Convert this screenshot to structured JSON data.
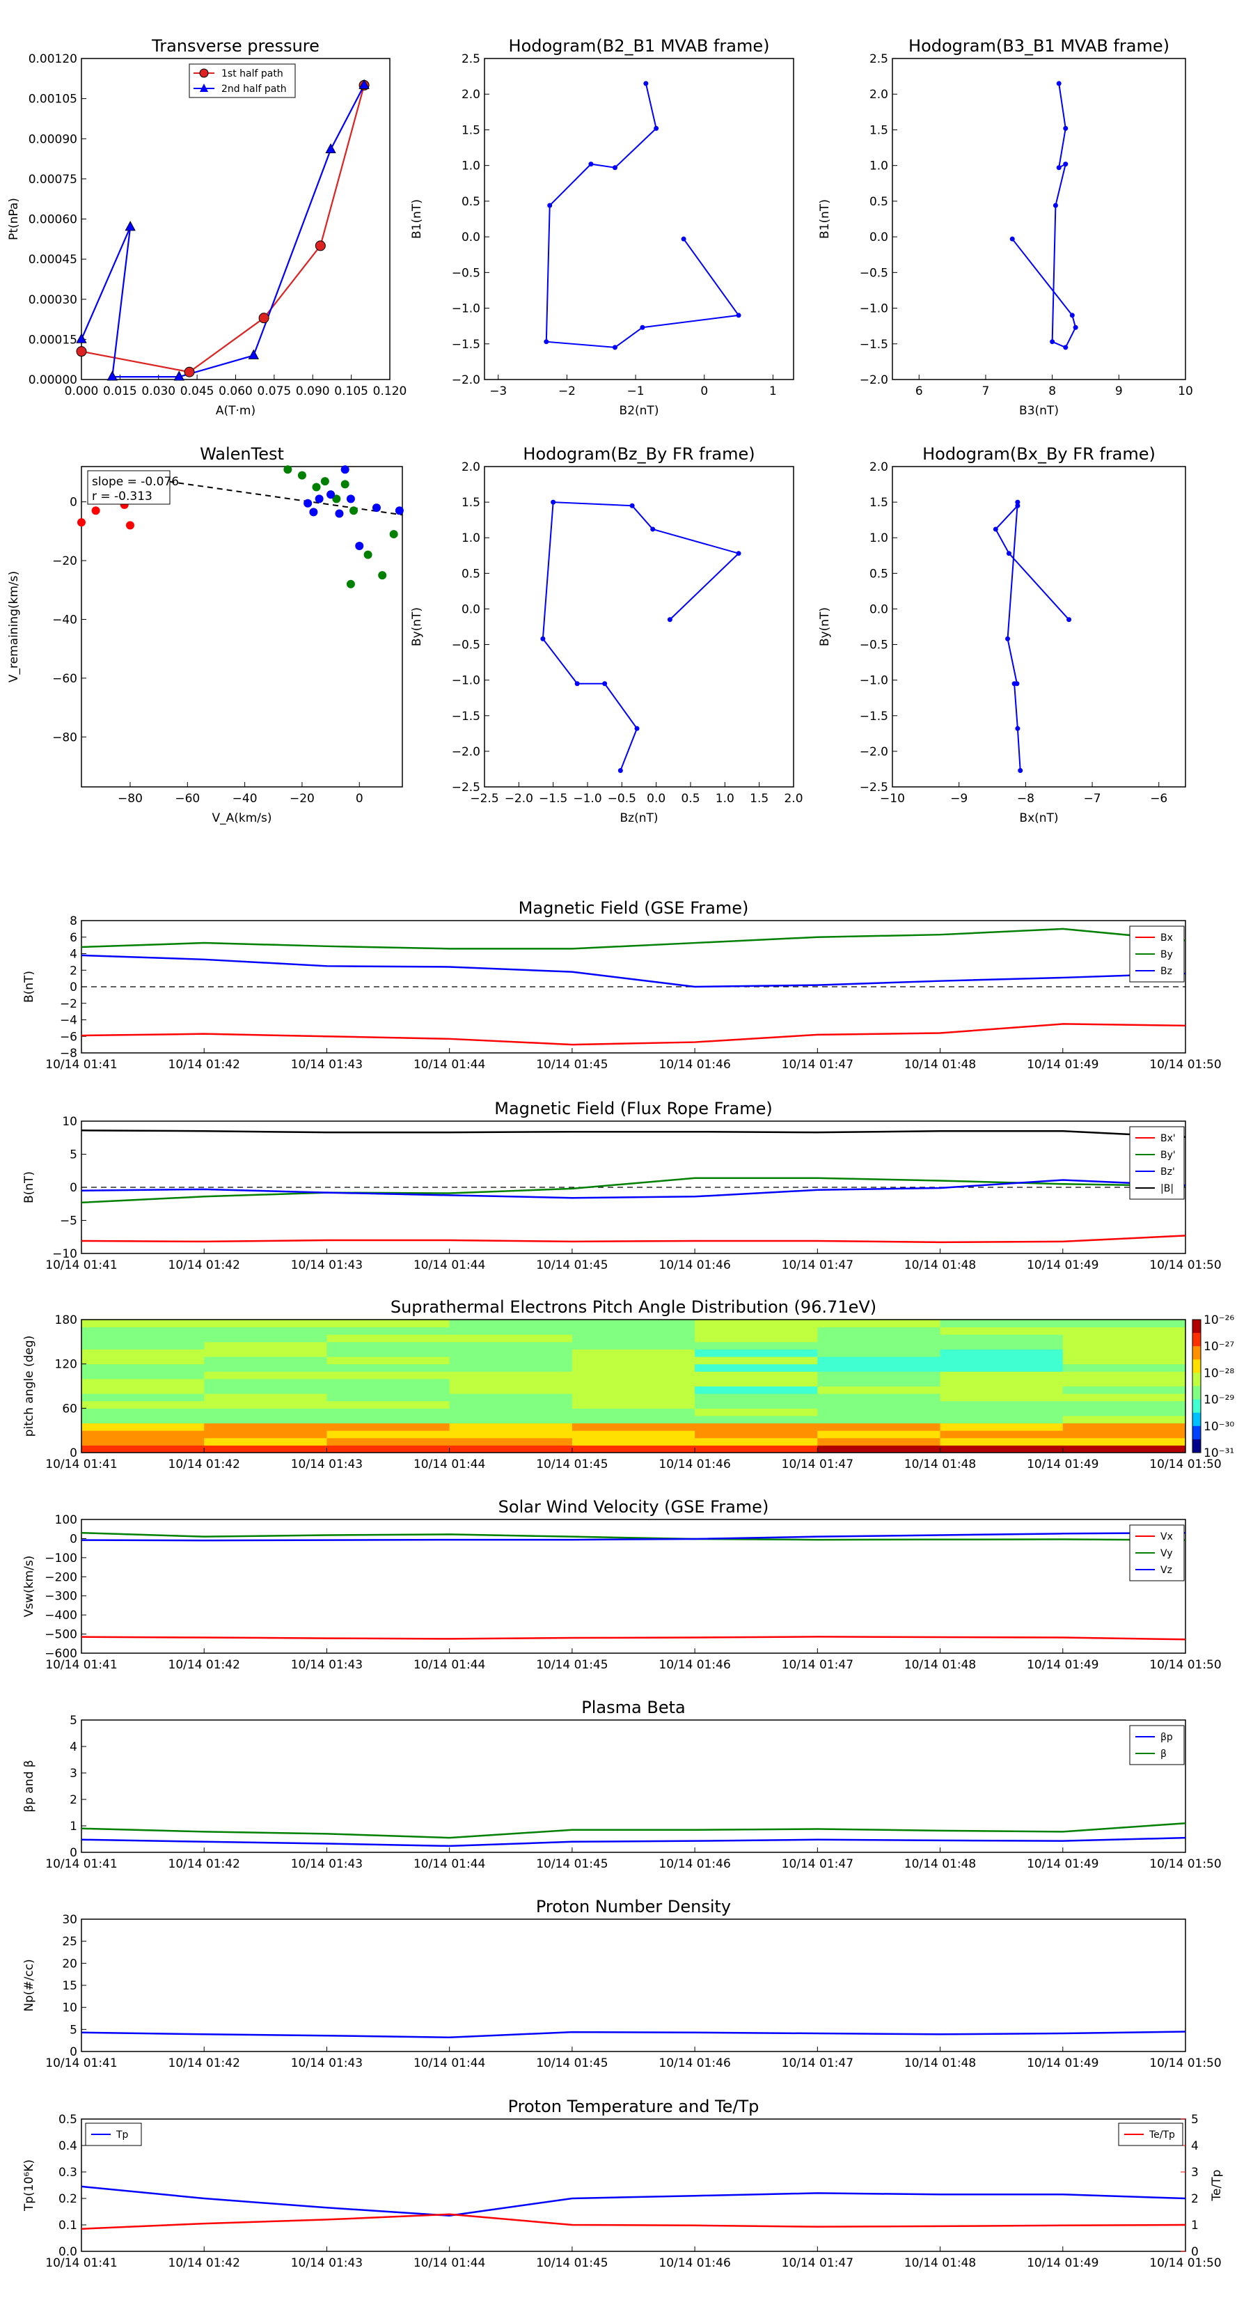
{
  "times": [
    "10/14 01:41",
    "10/14 01:42",
    "10/14 01:43",
    "10/14 01:44",
    "10/14 01:45",
    "10/14 01:46",
    "10/14 01:47",
    "10/14 01:48",
    "10/14 01:49",
    "10/14 01:50"
  ],
  "colors": {
    "red": "#ff0000",
    "green": "#008000",
    "blue": "#0000ff",
    "black": "#000000",
    "path1": "#dd2222",
    "path2": "#0000ff"
  },
  "chart_data": [
    {
      "id": "transverse-pressure",
      "type": "line",
      "title": "Transverse pressure",
      "xlabel": "A(T·m)",
      "ylabel": "Pt(nPa)",
      "xlim": [
        0,
        0.12
      ],
      "ylim": [
        0,
        0.0012
      ],
      "xticks": [
        "0.000",
        "0.015",
        "0.030",
        "0.045",
        "0.060",
        "0.075",
        "0.090",
        "0.105",
        "0.120"
      ],
      "yticks": [
        "0.00000",
        "0.00015",
        "0.00030",
        "0.00045",
        "0.00060",
        "0.00075",
        "0.00090",
        "0.00105",
        "0.00120"
      ],
      "legend": [
        "1st half path",
        "2nd half path"
      ],
      "series": [
        {
          "name": "1st half path",
          "marker": "circle",
          "x": [
            0.0,
            0.042,
            0.071,
            0.093,
            0.11
          ],
          "y": [
            0.000105,
            2.8e-05,
            0.00023,
            0.0005,
            0.0011
          ]
        },
        {
          "name": "2nd half path",
          "marker": "triangle",
          "x": [
            0.11,
            0.097,
            0.067,
            0.038,
            0.012,
            0.019,
            0.0
          ],
          "y": [
            0.0011,
            0.00086,
            9e-05,
            1e-05,
            1e-05,
            0.00057,
            0.00015
          ]
        }
      ]
    },
    {
      "id": "hodo-b2b1",
      "type": "line",
      "title": "Hodogram(B2_B1 MVAB frame)",
      "xlabel": "B2(nT)",
      "ylabel": "B1(nT)",
      "xlim": [
        -3.2,
        1.3
      ],
      "ylim": [
        -2.0,
        2.5
      ],
      "xticks": [
        "−3",
        "−2",
        "−1",
        "0",
        "1"
      ],
      "yticks": [
        "−2.0",
        "−1.5",
        "−1.0",
        "−0.5",
        "0.0",
        "0.5",
        "1.0",
        "1.5",
        "2.0",
        "2.5"
      ],
      "x": [
        -0.3,
        0.5,
        -0.9,
        -1.3,
        -2.3,
        -2.25,
        -1.65,
        -1.3,
        -0.7,
        -0.85
      ],
      "y": [
        -0.03,
        -1.1,
        -1.27,
        -1.55,
        -1.47,
        0.44,
        1.02,
        0.97,
        1.52,
        2.15
      ]
    },
    {
      "id": "hodo-b3b1",
      "type": "line",
      "title": "Hodogram(B3_B1 MVAB frame)",
      "xlabel": "B3(nT)",
      "ylabel": "B1(nT)",
      "xlim": [
        5.6,
        10.0
      ],
      "ylim": [
        -2.0,
        2.5
      ],
      "xticks": [
        "6",
        "7",
        "8",
        "9",
        "10"
      ],
      "yticks": [
        "−2.0",
        "−1.5",
        "−1.0",
        "−0.5",
        "0.0",
        "0.5",
        "1.0",
        "1.5",
        "2.0",
        "2.5"
      ],
      "x": [
        7.4,
        8.3,
        8.35,
        8.2,
        8.0,
        8.05,
        8.2,
        8.1,
        8.2,
        8.1
      ],
      "y": [
        -0.03,
        -1.1,
        -1.27,
        -1.55,
        -1.47,
        0.44,
        1.02,
        0.97,
        1.52,
        2.15
      ]
    },
    {
      "id": "walen-test",
      "type": "scatter",
      "title": "WalenTest",
      "xlabel": "V_A(km/s)",
      "ylabel": "V_remaining(km/s)",
      "xlim": [
        -97,
        15
      ],
      "ylim": [
        -97,
        12
      ],
      "xticks": [
        "−80",
        "−60",
        "−40",
        "−20",
        "0"
      ],
      "yticks": [
        "−80",
        "−60",
        "−40",
        "−20",
        "0"
      ],
      "annotation": [
        "slope = -0.076",
        "r = -0.313"
      ],
      "fit": {
        "slope": -0.076,
        "intercept": -3.3
      },
      "series": [
        {
          "color": "red",
          "x": [
            -97,
            -92,
            -88,
            -85,
            -82,
            -80
          ],
          "y": [
            -7,
            -3,
            0.5,
            3,
            -1,
            -8
          ]
        },
        {
          "color": "green",
          "x": [
            -25,
            -20,
            -15,
            -12,
            -8,
            -5,
            -3,
            3,
            8,
            12,
            -2
          ],
          "y": [
            11,
            9,
            5,
            7,
            1,
            6,
            -28,
            -18,
            -25,
            -11,
            -3
          ]
        },
        {
          "color": "blue",
          "x": [
            -18,
            -16,
            -14,
            -10,
            -7,
            -5,
            -3,
            0,
            6,
            14
          ],
          "y": [
            -0.5,
            -3.5,
            1,
            2.5,
            -4,
            11,
            1,
            -15,
            -2,
            -3
          ]
        }
      ]
    },
    {
      "id": "hodo-bzby",
      "type": "line",
      "title": "Hodogram(Bz_By FR frame)",
      "xlabel": "Bz(nT)",
      "ylabel": "By(nT)",
      "xlim": [
        -2.5,
        2.0
      ],
      "ylim": [
        -2.5,
        2.0
      ],
      "xticks": [
        "−2.5",
        "−2.0",
        "−1.5",
        "−1.0",
        "−0.5",
        "0.0",
        "0.5",
        "1.0",
        "1.5",
        "2.0"
      ],
      "yticks": [
        "−2.5",
        "−2.0",
        "−1.5",
        "−1.0",
        "−0.5",
        "0.0",
        "0.5",
        "1.0",
        "1.5",
        "2.0"
      ],
      "x": [
        0.2,
        1.2,
        -0.05,
        -0.35,
        -1.5,
        -1.65,
        -1.15,
        -0.75,
        -0.28,
        -0.52
      ],
      "y": [
        -0.15,
        0.78,
        1.12,
        1.45,
        1.5,
        -0.42,
        -1.05,
        -1.05,
        -1.68,
        -2.27
      ]
    },
    {
      "id": "hodo-bxby",
      "type": "line",
      "title": "Hodogram(Bx_By FR frame)",
      "xlabel": "Bx(nT)",
      "ylabel": "By(nT)",
      "xlim": [
        -10.0,
        -5.6
      ],
      "ylim": [
        -2.5,
        2.0
      ],
      "xticks": [
        "−10",
        "−9",
        "−8",
        "−7",
        "−6"
      ],
      "yticks": [
        "−2.5",
        "−2.0",
        "−1.5",
        "−1.0",
        "−0.5",
        "0.0",
        "0.5",
        "1.0",
        "1.5",
        "2.0"
      ],
      "x": [
        -7.35,
        -8.25,
        -8.45,
        -8.12,
        -8.12,
        -8.27,
        -8.13,
        -8.17,
        -8.12,
        -8.08
      ],
      "y": [
        -0.15,
        0.78,
        1.12,
        1.45,
        1.5,
        -0.42,
        -1.05,
        -1.05,
        -1.68,
        -2.27
      ]
    },
    {
      "id": "b-gse",
      "type": "line",
      "title": "Magnetic Field (GSE Frame)",
      "ylabel": "B(nT)",
      "ylim": [
        -8,
        8
      ],
      "yticks": [
        "−8",
        "−6",
        "−4",
        "−2",
        "0",
        "2",
        "4",
        "6",
        "8"
      ],
      "zero_line": true,
      "series": [
        {
          "name": "Bx",
          "color": "red",
          "y": [
            -5.9,
            -5.7,
            -6.0,
            -6.3,
            -7.0,
            -6.7,
            -5.8,
            -5.6,
            -4.5,
            -4.7
          ]
        },
        {
          "name": "By",
          "color": "green",
          "y": [
            4.8,
            5.3,
            4.9,
            4.6,
            4.6,
            5.3,
            6.0,
            6.3,
            7.0,
            5.6
          ]
        },
        {
          "name": "Bz",
          "color": "blue",
          "y": [
            3.8,
            3.3,
            2.5,
            2.4,
            1.8,
            0.0,
            0.2,
            0.7,
            1.1,
            1.6
          ]
        }
      ]
    },
    {
      "id": "b-fr",
      "type": "line",
      "title": "Magnetic Field (Flux Rope Frame)",
      "ylabel": "B(nT)",
      "ylim": [
        -10,
        10
      ],
      "yticks": [
        "−10",
        "−5",
        "0",
        "5",
        "10"
      ],
      "zero_line": true,
      "series": [
        {
          "name": "Bx'",
          "color": "red",
          "y": [
            -8.1,
            -8.2,
            -8.0,
            -8.0,
            -8.2,
            -8.1,
            -8.1,
            -8.3,
            -8.2,
            -7.3
          ]
        },
        {
          "name": "By'",
          "color": "green",
          "y": [
            -2.3,
            -1.4,
            -0.8,
            -0.9,
            -0.2,
            1.4,
            1.4,
            1.0,
            0.5,
            0.2
          ]
        },
        {
          "name": "Bz'",
          "color": "blue",
          "y": [
            -0.5,
            -0.3,
            -0.8,
            -1.2,
            -1.6,
            -1.4,
            -0.4,
            -0.1,
            1.1,
            0.3
          ]
        },
        {
          "name": "|B|",
          "color": "black",
          "y": [
            8.6,
            8.5,
            8.3,
            8.3,
            8.4,
            8.4,
            8.3,
            8.5,
            8.5,
            7.6
          ]
        }
      ]
    },
    {
      "id": "pad",
      "type": "heatmap",
      "title": "Suprathermal Electrons Pitch Angle Distribution (96.71eV)",
      "ylabel": "pitch angle (deg)",
      "ylim": [
        0,
        180
      ],
      "yticks": [
        "0",
        "60",
        "120",
        "180"
      ],
      "colorbar_ticks": [
        "10⁻²⁶",
        "10⁻²⁷",
        "10⁻²⁸",
        "10⁻²⁹",
        "10⁻³⁰",
        "10⁻³¹"
      ]
    },
    {
      "id": "vsw",
      "type": "line",
      "title": "Solar Wind Velocity (GSE Frame)",
      "ylabel": "Vsw(km/s)",
      "ylim": [
        -600,
        100
      ],
      "yticks": [
        "−600",
        "−500",
        "−400",
        "−300",
        "−200",
        "−100",
        "0",
        "100"
      ],
      "series": [
        {
          "name": "Vx",
          "color": "red",
          "y": [
            -515,
            -518,
            -522,
            -525,
            -520,
            -518,
            -514,
            -516,
            -518,
            -528
          ]
        },
        {
          "name": "Vy",
          "color": "green",
          "y": [
            30,
            10,
            18,
            22,
            10,
            -2,
            -6,
            -5,
            -4,
            -8
          ]
        },
        {
          "name": "Vz",
          "color": "blue",
          "y": [
            -8,
            -10,
            -8,
            -6,
            -6,
            -2,
            10,
            18,
            26,
            30
          ]
        }
      ]
    },
    {
      "id": "beta",
      "type": "line",
      "title": "Plasma Beta",
      "ylabel": "βp and β",
      "ylim": [
        0,
        5
      ],
      "yticks": [
        "0",
        "1",
        "2",
        "3",
        "4",
        "5"
      ],
      "series": [
        {
          "name": "βp",
          "color": "blue",
          "y": [
            0.48,
            0.4,
            0.33,
            0.24,
            0.4,
            0.43,
            0.48,
            0.45,
            0.43,
            0.55
          ]
        },
        {
          "name": "β",
          "color": "green",
          "y": [
            0.9,
            0.78,
            0.7,
            0.55,
            0.85,
            0.85,
            0.88,
            0.82,
            0.78,
            1.1
          ]
        }
      ]
    },
    {
      "id": "np",
      "type": "line",
      "title": "Proton Number Density",
      "ylabel": "Np(#/cc)",
      "ylim": [
        0,
        30
      ],
      "yticks": [
        "0",
        "5",
        "10",
        "15",
        "20",
        "25",
        "30"
      ],
      "series": [
        {
          "name": "Np",
          "color": "blue",
          "y": [
            4.3,
            3.9,
            3.6,
            3.2,
            4.4,
            4.3,
            4.1,
            3.9,
            4.1,
            4.5
          ]
        }
      ]
    },
    {
      "id": "tp",
      "type": "line",
      "title": "Proton Temperature and Te/Tp",
      "ylabel": "Tp(10⁶K)",
      "ylabel2": "Te/Tp",
      "ylim": [
        0,
        0.5
      ],
      "yticks": [
        "0.0",
        "0.1",
        "0.2",
        "0.3",
        "0.4",
        "0.5"
      ],
      "ylim2": [
        0,
        5
      ],
      "yticks2": [
        "0",
        "1",
        "2",
        "3",
        "4",
        "5"
      ],
      "series": [
        {
          "name": "Tp",
          "color": "blue",
          "axis": 1,
          "y": [
            0.245,
            0.2,
            0.165,
            0.135,
            0.2,
            0.21,
            0.22,
            0.215,
            0.215,
            0.2
          ]
        },
        {
          "name": "Te/Tp",
          "color": "red",
          "axis": 2,
          "y": [
            0.85,
            1.05,
            1.2,
            1.4,
            1.0,
            0.98,
            0.93,
            0.95,
            0.98,
            1.0
          ]
        }
      ]
    }
  ]
}
